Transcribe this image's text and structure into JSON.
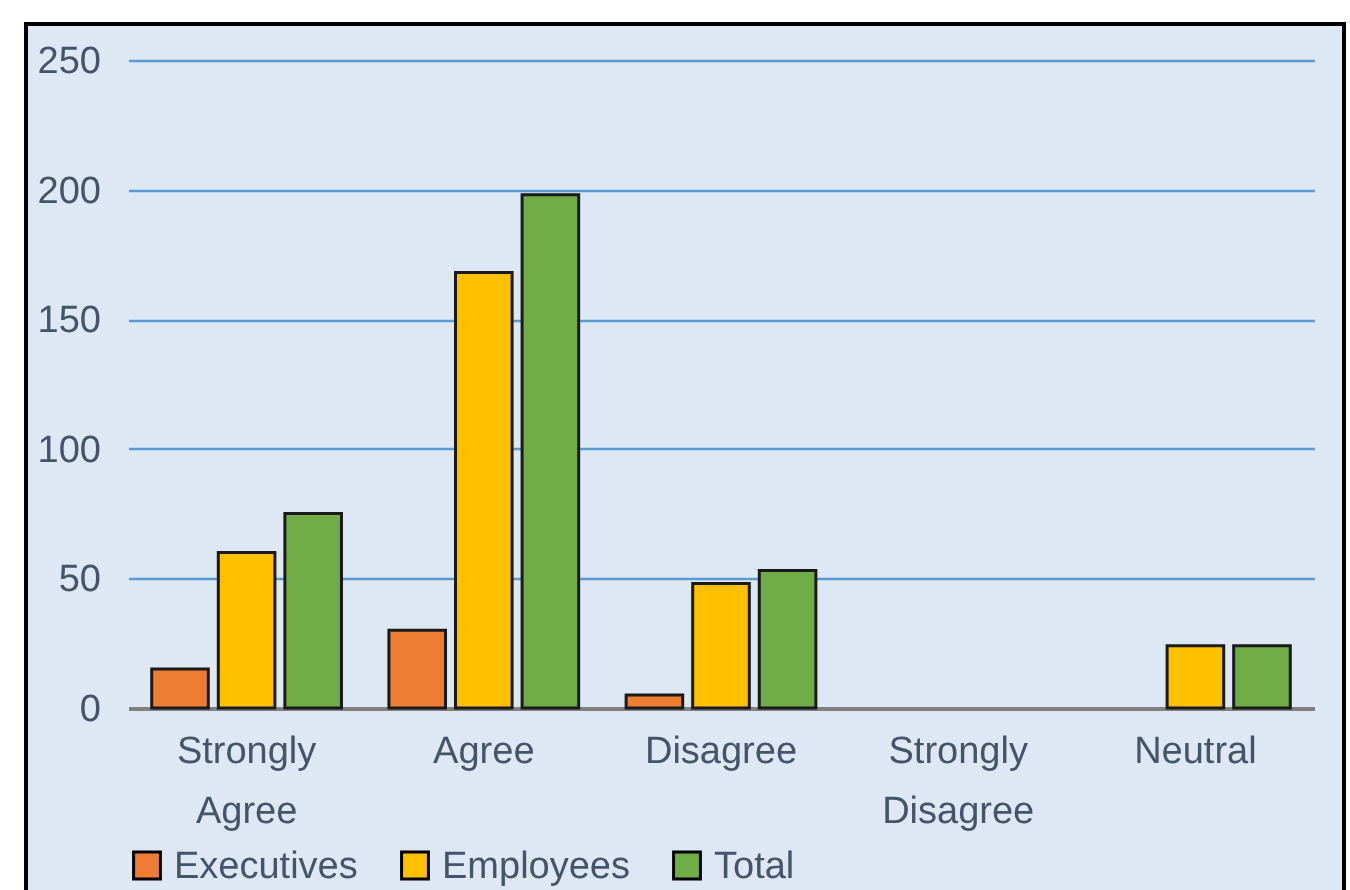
{
  "chart_data": {
    "type": "bar",
    "categories": [
      "Strongly Agree",
      "Agree",
      "Disagree",
      "Strongly Disagree",
      "Neutral"
    ],
    "series": [
      {
        "name": "Executives",
        "color": "#ed7d31",
        "values": [
          15,
          30,
          5,
          null,
          null
        ]
      },
      {
        "name": "Employees",
        "color": "#ffc000",
        "values": [
          60,
          168,
          48,
          null,
          24
        ]
      },
      {
        "name": "Total",
        "color": "#70ad47",
        "values": [
          75,
          198,
          53,
          null,
          24
        ]
      }
    ],
    "ylim": [
      0,
      250
    ],
    "yticks": [
      0,
      50,
      100,
      150,
      200,
      250
    ],
    "grid": "y",
    "legend": "bottom"
  }
}
